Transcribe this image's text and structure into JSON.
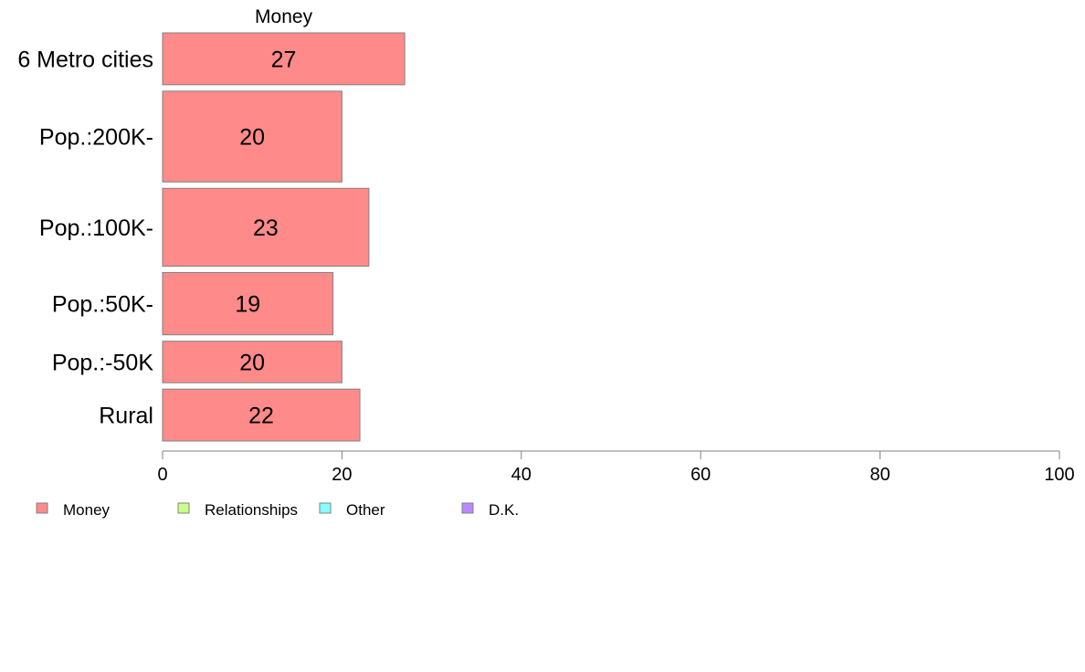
{
  "chart_data": {
    "type": "bar",
    "orientation": "horizontal",
    "stacked": true,
    "categories": [
      "6 Metro cities",
      "Pop.:200K-",
      "Pop.:100K-",
      "Pop.:50K-",
      "Pop.:-50K",
      "Rural"
    ],
    "bar_widths": [
      1,
      1.75,
      1.5,
      1.2,
      0.8,
      1
    ],
    "series": [
      {
        "name": "Money",
        "values": [
          27,
          20,
          23,
          19,
          20,
          22
        ]
      }
    ],
    "segment_labels": [
      "Money"
    ],
    "value_labels": [
      "27",
      "20",
      "23",
      "19",
      "20",
      "22"
    ],
    "xlim": [
      0,
      100
    ],
    "xticks": [
      0,
      20,
      40,
      60,
      80,
      100
    ],
    "grid": false,
    "legend": {
      "placement": "bottom-left",
      "entries": [
        {
          "name": "Money",
          "color": "#ff8a8a"
        },
        {
          "name": "Relationships",
          "color": "#ccff88"
        },
        {
          "name": "Other",
          "color": "#88ffff"
        },
        {
          "name": "D.K.",
          "color": "#bb88ff"
        }
      ]
    },
    "bar_color": "#ff8a8a",
    "bar_stroke": "#808080"
  }
}
